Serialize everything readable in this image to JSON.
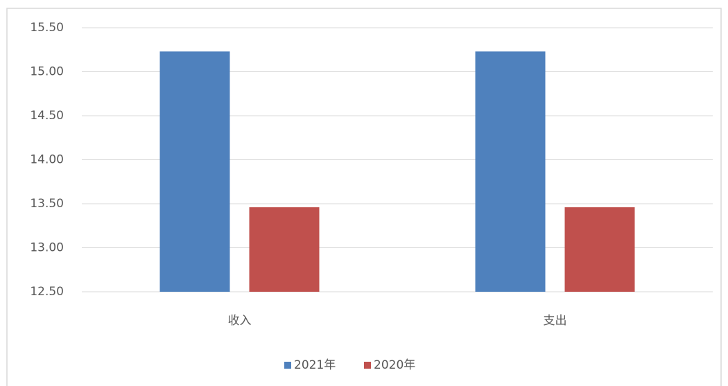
{
  "chart_data": {
    "type": "bar",
    "categories": [
      "收入",
      "支出"
    ],
    "series": [
      {
        "name": "2021年",
        "color": "#4f81bd",
        "values": [
          15.23,
          15.23
        ]
      },
      {
        "name": "2020年",
        "color": "#c0504d",
        "values": [
          13.46,
          13.46
        ]
      }
    ],
    "ylim": [
      12.5,
      15.5
    ],
    "yticks": [
      {
        "value": 12.5,
        "label": "12.50"
      },
      {
        "value": 13,
        "label": "13.00"
      },
      {
        "value": 13.5,
        "label": "13.50"
      },
      {
        "value": 14,
        "label": "14.00"
      },
      {
        "value": 14.5,
        "label": "14.50"
      },
      {
        "value": 15,
        "label": "15.00"
      },
      {
        "value": 15.5,
        "label": "15.50"
      }
    ],
    "grid": true,
    "legend": "bottom"
  }
}
